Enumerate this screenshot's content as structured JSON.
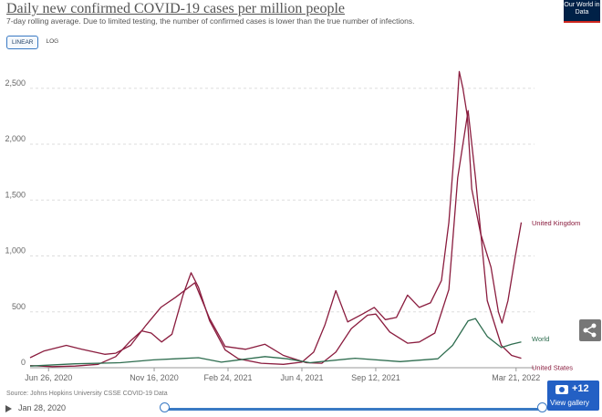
{
  "header": {
    "title": "Daily new confirmed COVID-19 cases per million people",
    "subtitle": "7-day rolling average. Due to limited testing, the number of confirmed cases is lower than the true number of infections.",
    "logo_text": "Our World in Data"
  },
  "controls": {
    "linear_label": "LINEAR",
    "log_label": "LOG",
    "active": "LINEAR"
  },
  "source": "Source: Johns Hopkins University CSSE COVID-19 Data",
  "timeline": {
    "start_date": "Jan 28, 2020"
  },
  "gallery": {
    "count": "+12",
    "label": "View gallery"
  },
  "chart_data": {
    "type": "line",
    "x_start": "2020-06-01",
    "x_end": "2022-04-10",
    "xlim": [
      "2020-06-01",
      "2022-04-10"
    ],
    "ylim": [
      0,
      2800
    ],
    "x_ticks": [
      {
        "date": "2020-06-26",
        "label": "Jun 26, 2020"
      },
      {
        "date": "2020-11-16",
        "label": "Nov 16, 2020"
      },
      {
        "date": "2021-02-24",
        "label": "Feb 24, 2021"
      },
      {
        "date": "2021-06-04",
        "label": "Jun 4, 2021"
      },
      {
        "date": "2021-09-12",
        "label": "Sep 12, 2021"
      },
      {
        "date": "2022-03-21",
        "label": "Mar 21, 2022"
      }
    ],
    "y_ticks": [
      {
        "value": 0,
        "label": "0"
      },
      {
        "value": 500,
        "label": "500"
      },
      {
        "value": 1000,
        "label": "1,000"
      },
      {
        "value": 1500,
        "label": "1,500"
      },
      {
        "value": 2000,
        "label": "2,000"
      },
      {
        "value": 2500,
        "label": "2,500"
      }
    ],
    "grid": true,
    "series": [
      {
        "name": "United Kingdom",
        "color": "#8a1c3e",
        "points": [
          [
            "2020-06-01",
            20
          ],
          [
            "2020-07-01",
            10
          ],
          [
            "2020-08-01",
            15
          ],
          [
            "2020-09-01",
            30
          ],
          [
            "2020-09-25",
            100
          ],
          [
            "2020-10-15",
            240
          ],
          [
            "2020-10-30",
            330
          ],
          [
            "2020-11-12",
            310
          ],
          [
            "2020-11-26",
            230
          ],
          [
            "2020-12-10",
            300
          ],
          [
            "2020-12-25",
            650
          ],
          [
            "2021-01-05",
            850
          ],
          [
            "2021-01-15",
            720
          ],
          [
            "2021-01-30",
            420
          ],
          [
            "2021-02-20",
            160
          ],
          [
            "2021-03-10",
            80
          ],
          [
            "2021-04-10",
            40
          ],
          [
            "2021-05-10",
            30
          ],
          [
            "2021-06-04",
            50
          ],
          [
            "2021-06-20",
            140
          ],
          [
            "2021-07-05",
            380
          ],
          [
            "2021-07-20",
            690
          ],
          [
            "2021-08-05",
            410
          ],
          [
            "2021-08-25",
            480
          ],
          [
            "2021-09-10",
            540
          ],
          [
            "2021-09-25",
            430
          ],
          [
            "2021-10-10",
            450
          ],
          [
            "2021-10-25",
            650
          ],
          [
            "2021-11-10",
            540
          ],
          [
            "2021-11-25",
            580
          ],
          [
            "2021-12-10",
            780
          ],
          [
            "2021-12-20",
            1300
          ],
          [
            "2021-12-28",
            2000
          ],
          [
            "2022-01-03",
            2650
          ],
          [
            "2022-01-08",
            2500
          ],
          [
            "2022-01-14",
            2250
          ],
          [
            "2022-01-20",
            1600
          ],
          [
            "2022-02-01",
            1200
          ],
          [
            "2022-02-15",
            900
          ],
          [
            "2022-02-25",
            500
          ],
          [
            "2022-03-02",
            400
          ],
          [
            "2022-03-10",
            600
          ],
          [
            "2022-03-20",
            1000
          ],
          [
            "2022-03-28",
            1300
          ]
        ]
      },
      {
        "name": "United States",
        "color": "#8a1c3e",
        "points": [
          [
            "2020-06-01",
            90
          ],
          [
            "2020-06-20",
            150
          ],
          [
            "2020-07-20",
            200
          ],
          [
            "2020-08-10",
            165
          ],
          [
            "2020-09-10",
            120
          ],
          [
            "2020-09-25",
            130
          ],
          [
            "2020-10-15",
            200
          ],
          [
            "2020-11-05",
            380
          ],
          [
            "2020-11-25",
            540
          ],
          [
            "2020-12-15",
            630
          ],
          [
            "2021-01-10",
            760
          ],
          [
            "2021-01-30",
            440
          ],
          [
            "2021-02-20",
            190
          ],
          [
            "2021-03-20",
            165
          ],
          [
            "2021-04-15",
            210
          ],
          [
            "2021-05-10",
            110
          ],
          [
            "2021-06-10",
            45
          ],
          [
            "2021-07-01",
            40
          ],
          [
            "2021-07-20",
            140
          ],
          [
            "2021-08-10",
            350
          ],
          [
            "2021-09-01",
            470
          ],
          [
            "2021-09-12",
            480
          ],
          [
            "2021-10-01",
            320
          ],
          [
            "2021-10-25",
            220
          ],
          [
            "2021-11-10",
            230
          ],
          [
            "2021-12-01",
            310
          ],
          [
            "2021-12-20",
            700
          ],
          [
            "2022-01-01",
            1700
          ],
          [
            "2022-01-15",
            2300
          ],
          [
            "2022-01-25",
            1700
          ],
          [
            "2022-02-10",
            600
          ],
          [
            "2022-03-01",
            200
          ],
          [
            "2022-03-15",
            110
          ],
          [
            "2022-03-28",
            85
          ]
        ]
      },
      {
        "name": "World",
        "color": "#2e6d4f",
        "points": [
          [
            "2020-06-01",
            15
          ],
          [
            "2020-08-01",
            35
          ],
          [
            "2020-10-01",
            45
          ],
          [
            "2020-11-15",
            70
          ],
          [
            "2020-12-15",
            80
          ],
          [
            "2021-01-15",
            90
          ],
          [
            "2021-02-15",
            50
          ],
          [
            "2021-04-15",
            100
          ],
          [
            "2021-05-15",
            80
          ],
          [
            "2021-06-15",
            45
          ],
          [
            "2021-08-15",
            85
          ],
          [
            "2021-10-15",
            55
          ],
          [
            "2021-12-05",
            80
          ],
          [
            "2021-12-25",
            200
          ],
          [
            "2022-01-15",
            420
          ],
          [
            "2022-01-25",
            440
          ],
          [
            "2022-02-10",
            280
          ],
          [
            "2022-03-01",
            180
          ],
          [
            "2022-03-15",
            210
          ],
          [
            "2022-03-28",
            230
          ]
        ]
      }
    ]
  }
}
